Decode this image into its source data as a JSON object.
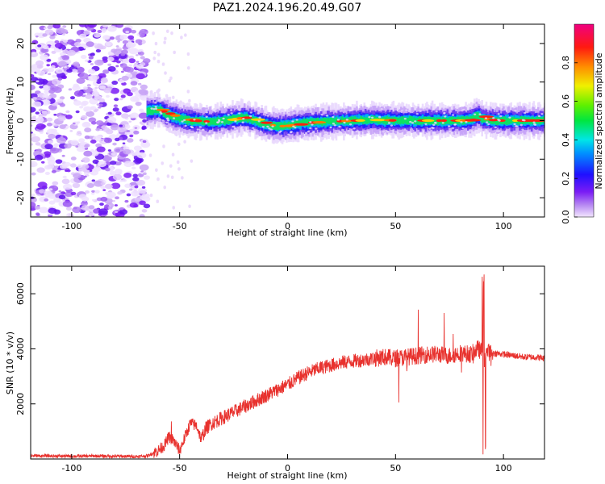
{
  "title": "PAZ1.2024.196.20.49.G07",
  "chart_data": [
    {
      "type": "heatmap",
      "xlabel": "Height of straight line (km)",
      "ylabel": "Frequency (Hz)",
      "xlim": [
        -119,
        119
      ],
      "ylim": [
        -25,
        25
      ],
      "xticks": [
        -100,
        -50,
        0,
        50,
        100
      ],
      "yticks": [
        -20,
        -10,
        0,
        10,
        20
      ],
      "colorbar": {
        "label": "Normalized spectral amplitude",
        "range": [
          0,
          1
        ],
        "ticks": [
          "0.0",
          "0.2",
          "0.4",
          "0.6",
          "0.8"
        ],
        "colormap": "rainbow (violet → blue → cyan → green → yellow → red → magenta)"
      },
      "features": {
        "noise_region_x": [
          -119,
          -65
        ],
        "ridge": {
          "x": [
            -65,
            -60,
            -55,
            -50,
            -45,
            -40,
            -35,
            -30,
            -25,
            -20,
            -15,
            -10,
            -5,
            0,
            5,
            10,
            20,
            30,
            40,
            50,
            60,
            70,
            80,
            85,
            88,
            90,
            95,
            100,
            110,
            119
          ],
          "freq": [
            2.5,
            2.8,
            1.5,
            0.5,
            0.0,
            -0.2,
            -0.3,
            0.0,
            0.5,
            0.8,
            0.0,
            -1.0,
            -1.5,
            -1.3,
            -0.8,
            -0.5,
            -0.2,
            0.0,
            0.2,
            0.0,
            0.0,
            0.0,
            0.0,
            0.2,
            1.5,
            0.5,
            0.0,
            0.0,
            0.0,
            0.0
          ]
        }
      }
    },
    {
      "type": "line",
      "xlabel": "Height of straight line (km)",
      "ylabel": "SNR (10 * v/v)",
      "xlim": [
        -119,
        119
      ],
      "ylim": [
        0,
        7000
      ],
      "xticks": [
        -100,
        -50,
        0,
        50,
        100
      ],
      "yticks": [
        2000,
        4000,
        6000
      ],
      "color": "#e8322e",
      "series": [
        {
          "x": [
            -119,
            -110,
            -100,
            -90,
            -80,
            -70,
            -65,
            -60,
            -57,
            -55,
            -53,
            -50,
            -45,
            -42,
            -40,
            -38,
            -35,
            -30,
            -25,
            -20,
            -15,
            -10,
            -5,
            0,
            5,
            10,
            15,
            20,
            25,
            30,
            35,
            40,
            45,
            50,
            55,
            60,
            65,
            70,
            75,
            80,
            85,
            88,
            90,
            91,
            92,
            95,
            100,
            105,
            110,
            115,
            119
          ],
          "values": [
            120,
            110,
            100,
            110,
            100,
            90,
            110,
            300,
            500,
            800,
            700,
            300,
            1300,
            1200,
            700,
            1100,
            1300,
            1500,
            1700,
            1900,
            2100,
            2300,
            2500,
            2700,
            2950,
            3150,
            3300,
            3400,
            3500,
            3550,
            3600,
            3650,
            3700,
            3650,
            3700,
            3750,
            3800,
            3800,
            3750,
            3850,
            3800,
            4000,
            3900,
            3400,
            3900,
            3850,
            3800,
            3750,
            3700,
            3700,
            3650
          ]
        }
      ]
    }
  ]
}
